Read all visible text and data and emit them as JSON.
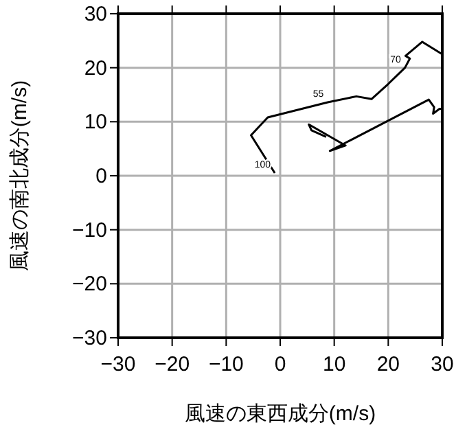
{
  "chart_data": {
    "type": "line",
    "xlabel": "風速の東西成分(m/s)",
    "ylabel": "風速の南北成分(m/s)",
    "xlim": [
      -30,
      30
    ],
    "ylim": [
      -30,
      30
    ],
    "xticks": [
      -30,
      -20,
      -10,
      0,
      10,
      20,
      30
    ],
    "yticks": [
      -30,
      -20,
      -10,
      0,
      10,
      20,
      30
    ],
    "grid": true,
    "series": [
      {
        "color": "#000000",
        "x": [
          -1.0,
          -5.4,
          -2.3,
          8.8,
          14.1,
          16.9,
          20.0,
          23.1,
          24.0,
          23.2,
          26.3,
          30
        ],
        "values": [
          0.5,
          7.5,
          10.8,
          13.6,
          14.7,
          14.2,
          17.0,
          20.0,
          21.7,
          22.2,
          24.8,
          22.5
        ]
      },
      {
        "color": "#000000",
        "x": [
          30,
          29.5,
          28.3,
          28.5,
          27.5,
          9.2,
          12.1,
          5.3,
          5.8,
          8.5
        ],
        "values": [
          12.4,
          12.4,
          11.5,
          12.7,
          14.1,
          4.6,
          5.6,
          9.5,
          8.4,
          7.2
        ]
      }
    ],
    "annotations": [
      {
        "text": "100",
        "x": -1.0,
        "y": 0.5
      },
      {
        "text": "55",
        "x": 8.8,
        "y": 13.6
      },
      {
        "text": "70",
        "x": 23.1,
        "y": 20.0
      }
    ]
  }
}
